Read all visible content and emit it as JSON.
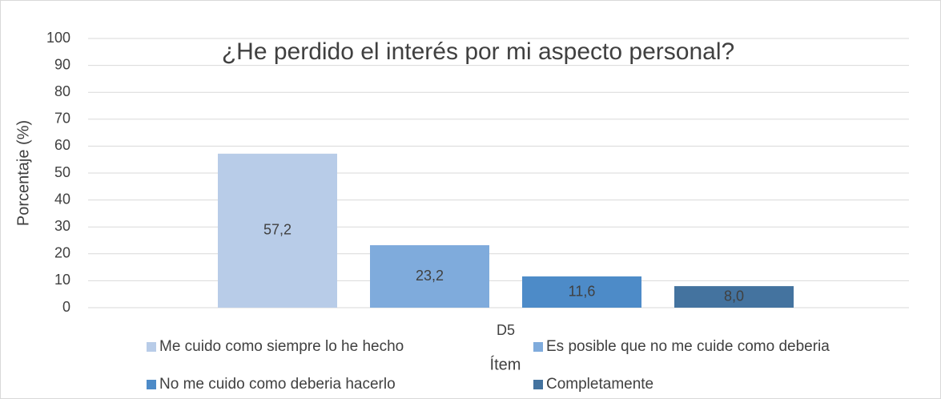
{
  "chart_data": {
    "type": "bar",
    "title": "¿He perdido el interés por mi aspecto personal?",
    "x_label": "Ítem",
    "y_label": "Porcentaje (%)",
    "categories": [
      "D5"
    ],
    "series": [
      {
        "name": "Me cuido como siempre lo he hecho",
        "color": "#b8cce8",
        "values": [
          57.2
        ],
        "value_labels": [
          "57,2"
        ]
      },
      {
        "name": "Es posible que no me cuide como deberia",
        "color": "#7fabdc",
        "values": [
          23.2
        ],
        "value_labels": [
          "23,2"
        ]
      },
      {
        "name": "No me cuido como deberia hacerlo",
        "color": "#4d8bc8",
        "values": [
          11.6
        ],
        "value_labels": [
          "11,6"
        ]
      },
      {
        "name": "Completamente",
        "color": "#44739f",
        "values": [
          8.0
        ],
        "value_labels": [
          "8,0"
        ]
      }
    ],
    "ylim": [
      0,
      100
    ],
    "yticks": [
      0,
      10,
      20,
      30,
      40,
      50,
      60,
      70,
      80,
      90,
      100
    ],
    "grid": true,
    "legend": "bottom"
  }
}
